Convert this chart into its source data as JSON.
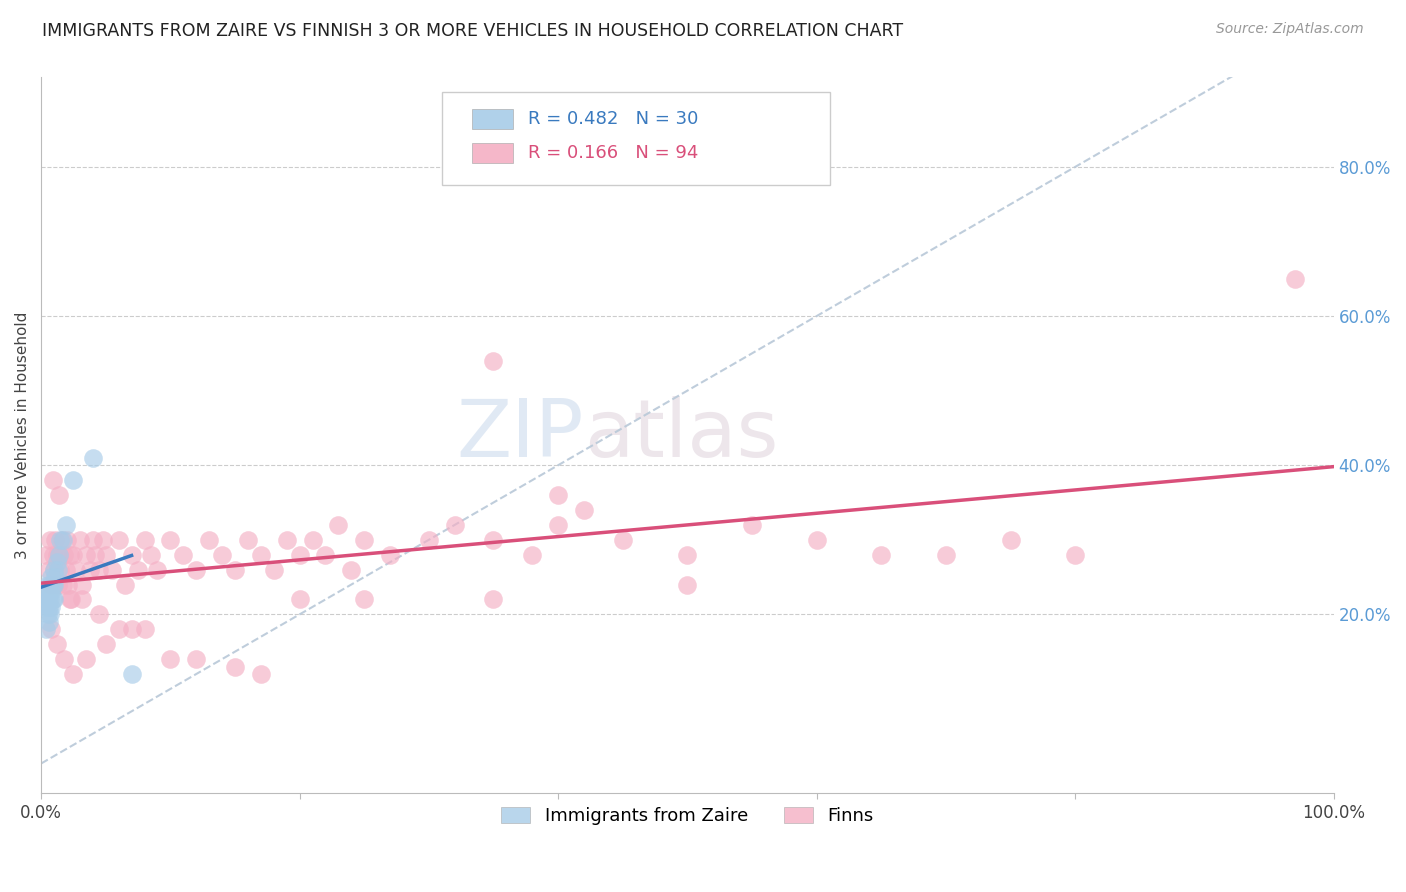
{
  "title": "IMMIGRANTS FROM ZAIRE VS FINNISH 3 OR MORE VEHICLES IN HOUSEHOLD CORRELATION CHART",
  "source": "Source: ZipAtlas.com",
  "ylabel": "3 or more Vehicles in Household",
  "R_blue": 0.482,
  "N_blue": 30,
  "R_pink": 0.166,
  "N_pink": 94,
  "blue_color": "#a8cce8",
  "pink_color": "#f4afc4",
  "blue_line_color": "#3a7abf",
  "pink_line_color": "#d94f7a",
  "dashed_line_color": "#b8c8d8",
  "watermark_zip": "ZIP",
  "watermark_atlas": "atlas",
  "blue_scatter_x": [
    0.003,
    0.004,
    0.004,
    0.005,
    0.005,
    0.005,
    0.006,
    0.006,
    0.006,
    0.007,
    0.007,
    0.007,
    0.008,
    0.008,
    0.008,
    0.009,
    0.009,
    0.01,
    0.01,
    0.01,
    0.011,
    0.012,
    0.013,
    0.014,
    0.015,
    0.017,
    0.019,
    0.025,
    0.04,
    0.07
  ],
  "blue_scatter_y": [
    0.21,
    0.18,
    0.22,
    0.2,
    0.22,
    0.24,
    0.19,
    0.21,
    0.23,
    0.2,
    0.22,
    0.24,
    0.21,
    0.23,
    0.25,
    0.22,
    0.24,
    0.22,
    0.24,
    0.26,
    0.25,
    0.27,
    0.26,
    0.28,
    0.3,
    0.3,
    0.32,
    0.38,
    0.41,
    0.12
  ],
  "pink_scatter_x": [
    0.004,
    0.006,
    0.007,
    0.008,
    0.009,
    0.01,
    0.011,
    0.012,
    0.013,
    0.014,
    0.015,
    0.016,
    0.017,
    0.018,
    0.019,
    0.02,
    0.021,
    0.022,
    0.023,
    0.025,
    0.027,
    0.03,
    0.032,
    0.035,
    0.038,
    0.04,
    0.042,
    0.045,
    0.048,
    0.05,
    0.055,
    0.06,
    0.065,
    0.07,
    0.075,
    0.08,
    0.085,
    0.09,
    0.1,
    0.11,
    0.12,
    0.13,
    0.14,
    0.15,
    0.16,
    0.17,
    0.18,
    0.19,
    0.2,
    0.21,
    0.22,
    0.23,
    0.24,
    0.25,
    0.27,
    0.3,
    0.32,
    0.35,
    0.38,
    0.4,
    0.42,
    0.45,
    0.5,
    0.55,
    0.6,
    0.65,
    0.7,
    0.75,
    0.8,
    0.97,
    0.008,
    0.012,
    0.018,
    0.025,
    0.035,
    0.05,
    0.07,
    0.1,
    0.15,
    0.2,
    0.009,
    0.014,
    0.022,
    0.032,
    0.045,
    0.06,
    0.08,
    0.12,
    0.17,
    0.25,
    0.35,
    0.4,
    0.5,
    0.35
  ],
  "pink_scatter_y": [
    0.28,
    0.26,
    0.3,
    0.24,
    0.28,
    0.26,
    0.3,
    0.28,
    0.24,
    0.28,
    0.26,
    0.3,
    0.24,
    0.28,
    0.26,
    0.3,
    0.24,
    0.28,
    0.22,
    0.28,
    0.26,
    0.3,
    0.24,
    0.28,
    0.26,
    0.3,
    0.28,
    0.26,
    0.3,
    0.28,
    0.26,
    0.3,
    0.24,
    0.28,
    0.26,
    0.3,
    0.28,
    0.26,
    0.3,
    0.28,
    0.26,
    0.3,
    0.28,
    0.26,
    0.3,
    0.28,
    0.26,
    0.3,
    0.28,
    0.3,
    0.28,
    0.32,
    0.26,
    0.3,
    0.28,
    0.3,
    0.32,
    0.3,
    0.28,
    0.32,
    0.34,
    0.3,
    0.28,
    0.32,
    0.3,
    0.28,
    0.28,
    0.3,
    0.28,
    0.65,
    0.18,
    0.16,
    0.14,
    0.12,
    0.14,
    0.16,
    0.18,
    0.14,
    0.13,
    0.22,
    0.38,
    0.36,
    0.22,
    0.22,
    0.2,
    0.18,
    0.18,
    0.14,
    0.12,
    0.22,
    0.22,
    0.36,
    0.24,
    0.54
  ]
}
